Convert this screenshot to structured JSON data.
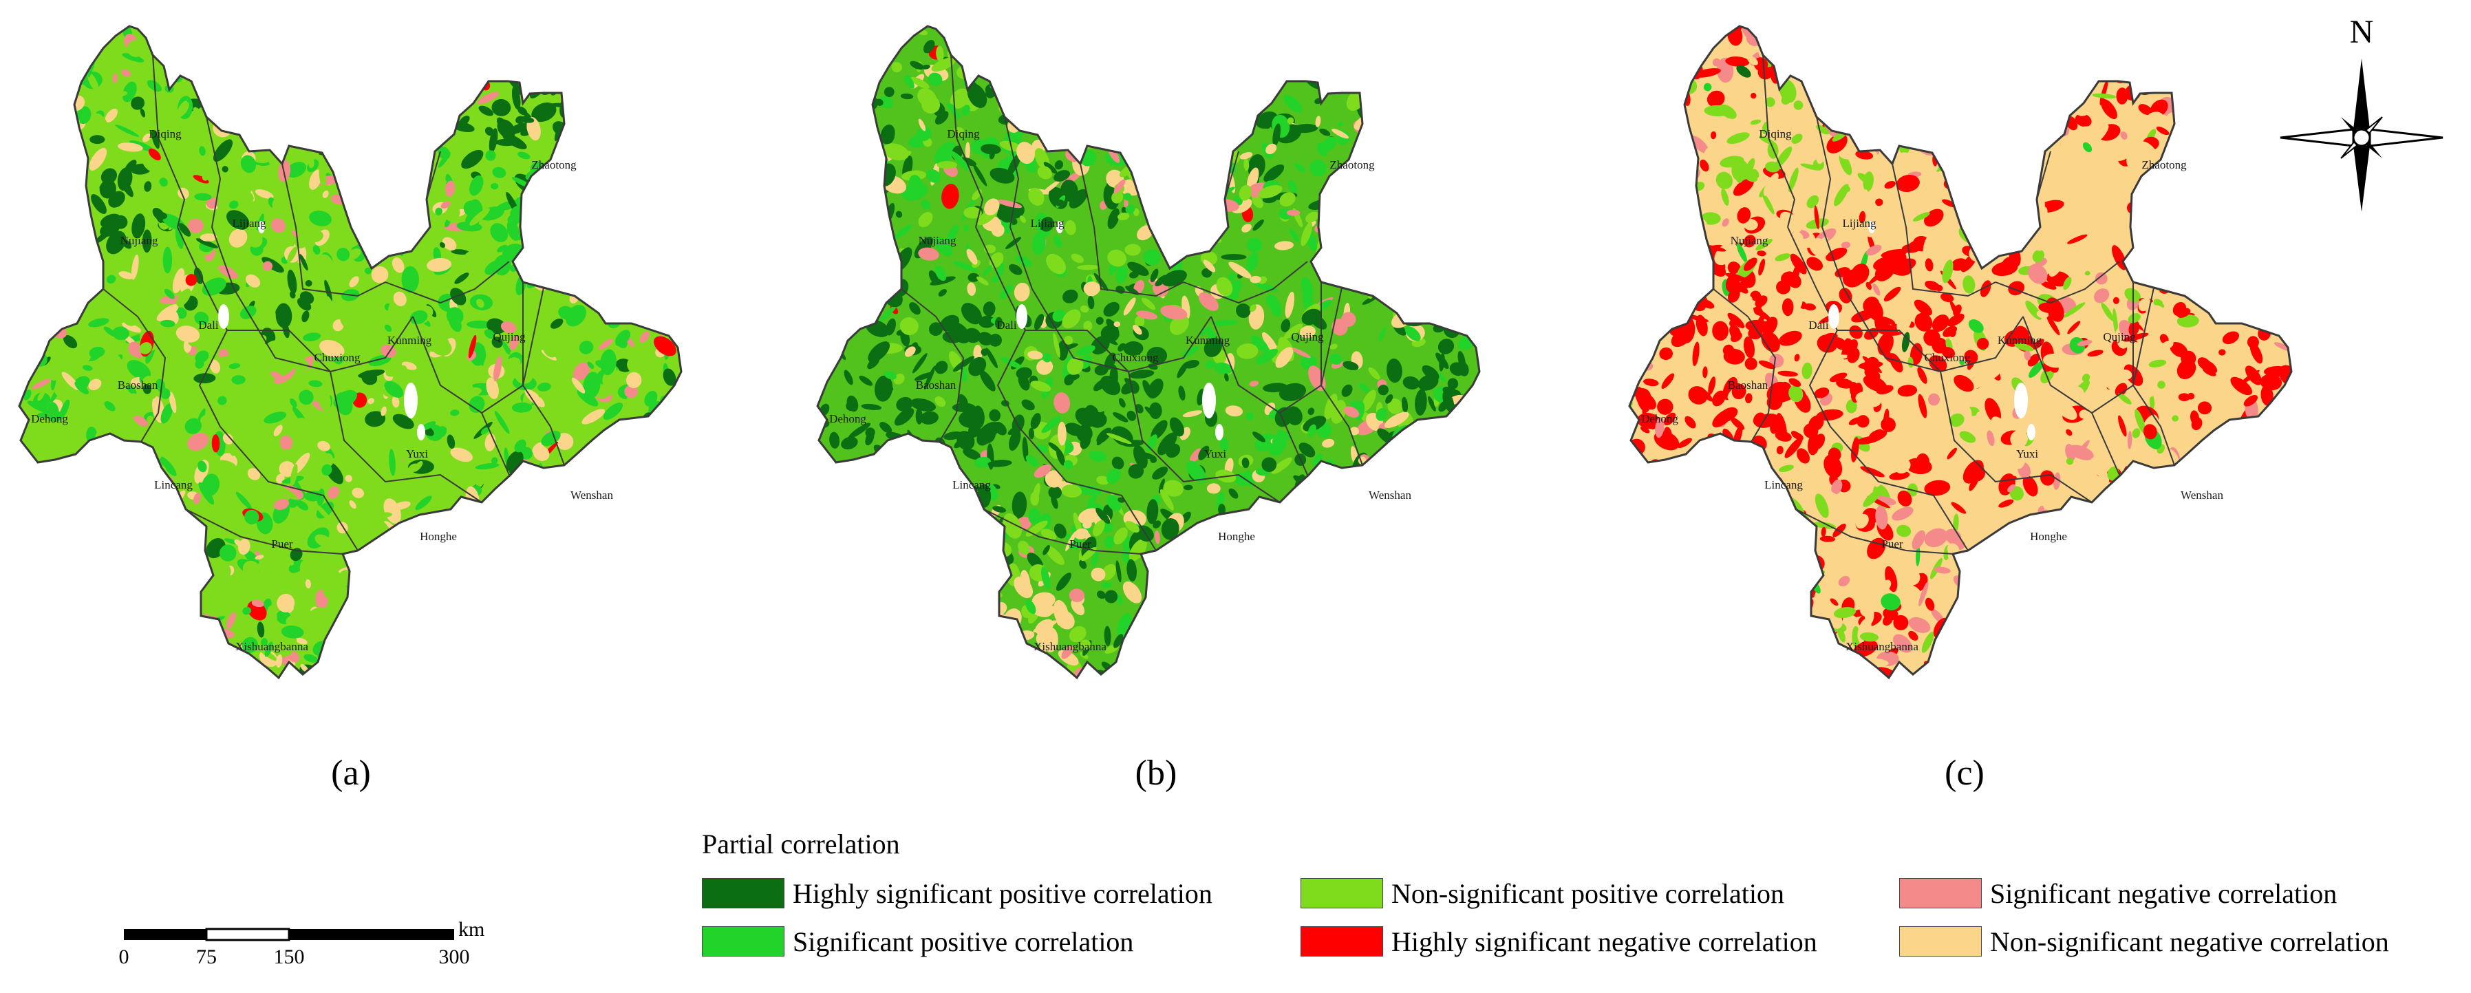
{
  "panels": [
    {
      "label": "(a)",
      "regions": [
        "Diqing",
        "Nujiang",
        "Lijiang",
        "Zhaotong",
        "Dali",
        "Baoshan",
        "Chuxiong",
        "Kunming",
        "Qujing",
        "Dehong",
        "Lincang",
        "Yuxi",
        "Wenshan",
        "Puer",
        "Honghe",
        "Xishuangbanna"
      ]
    },
    {
      "label": "(b)",
      "regions": [
        "Diqing",
        "Nujiang",
        "Lijiang",
        "Zhaotong",
        "Dali",
        "Baoshan",
        "Chuxiong",
        "Kunming",
        "Qujing",
        "Dehong",
        "Lincang",
        "Yuxi",
        "Wenshan",
        "Puer",
        "Honghe",
        "Xishuangbanna"
      ]
    },
    {
      "label": "(c)",
      "regions": [
        "Diqing",
        "Nujiang",
        "Lijiang",
        "Zhaotong",
        "Dali",
        "Baoshan",
        "Chuxiong",
        "Kunming",
        "Qujing",
        "Dehong",
        "Lincang",
        "Yuxi",
        "Wenshan",
        "Puer",
        "Honghe",
        "Xishuangbanna"
      ]
    }
  ],
  "north_arrow": {
    "label": "N"
  },
  "scale_bar": {
    "unit": "km",
    "ticks": [
      "0",
      "75",
      "150",
      "300"
    ]
  },
  "legend": {
    "title": "Partial correlation",
    "items": [
      {
        "label": "Highly significant positive correlation",
        "color": "#0b6e12"
      },
      {
        "label": "Significant positive correlation",
        "color": "#22d42a"
      },
      {
        "label": "Non-significant positive correlation",
        "color": "#7fdc1d"
      },
      {
        "label": "Highly significant negative correlation",
        "color": "#ff0000"
      },
      {
        "label": "Significant negative correlation",
        "color": "#f58a8a"
      },
      {
        "label": "Non-significant negative correlation",
        "color": "#fad58a"
      }
    ]
  },
  "colors": {
    "boundary": "#3a3a3a",
    "lake": "#ffffff"
  }
}
